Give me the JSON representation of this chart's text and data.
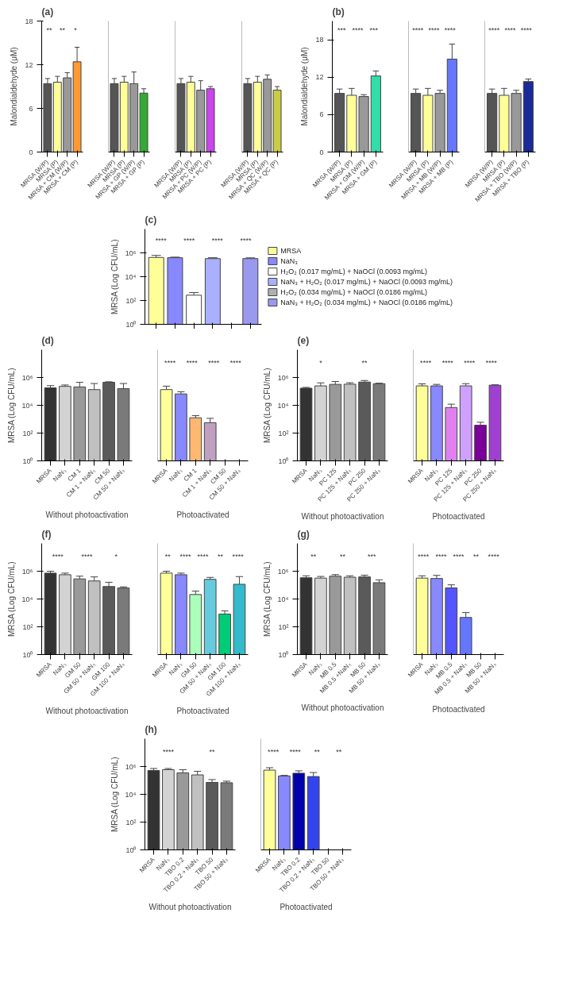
{
  "chart_data": [
    {
      "type": "bar",
      "title": "(a)",
      "ylabel": "Malondialdehyde (μM)",
      "categories": [
        "MRSA (W/P)",
        "MRSA (P)",
        "MRSA + CM (W/P)",
        "MRSA + CM (P)"
      ],
      "values": [
        9.4,
        9.6,
        10.2,
        12.4
      ],
      "errors": [
        [
          9.4,
          10.1
        ],
        [
          9.6,
          10.4
        ],
        [
          10.2,
          10.9
        ],
        [
          12.4,
          14.4
        ]
      ],
      "colors": [
        "#555555",
        "#ffff99",
        "#999999",
        "#ff9933"
      ],
      "ylim": [
        0,
        18
      ],
      "yticks": [
        0,
        6,
        12,
        18
      ],
      "annotations": [
        "**",
        "**",
        "*"
      ]
    },
    {
      "type": "bar",
      "tick_labels": "x",
      "categories": [
        "MRSA (W/P)",
        "MRSA (P)",
        "MRSA + GP (W/P)",
        "MRSA + GP (P)"
      ],
      "values": [
        9.4,
        9.6,
        9.4,
        8.1
      ],
      "errors": [
        [
          9.4,
          10.1
        ],
        [
          9.6,
          10.4
        ],
        [
          9.4,
          11.0
        ],
        [
          8.1,
          8.7
        ]
      ],
      "colors": [
        "#555555",
        "#ffff99",
        "#999999",
        "#33aa33"
      ],
      "ylim": [
        0,
        18
      ]
    },
    {
      "type": "bar",
      "tick_labels": "x",
      "categories": [
        "MRSA (W/P)",
        "MRSA (P)",
        "MRSA + PC (W/P)",
        "MRSA + PC (P)"
      ],
      "values": [
        9.4,
        9.6,
        8.5,
        8.7
      ],
      "errors": [
        [
          9.4,
          10.1
        ],
        [
          9.6,
          10.4
        ],
        [
          8.5,
          9.8
        ],
        [
          8.7,
          9.0
        ]
      ],
      "colors": [
        "#555555",
        "#ffff99",
        "#999999",
        "#cc44ee"
      ],
      "ylim": [
        0,
        18
      ]
    },
    {
      "type": "bar",
      "tick_labels": "x",
      "categories": [
        "MRSA (W/P)",
        "MRSA (P)",
        "MRSA + QC (W/P)",
        "MRSA + QC (P)"
      ],
      "values": [
        9.4,
        9.6,
        10.0,
        8.5
      ],
      "errors": [
        [
          9.4,
          10.1
        ],
        [
          9.6,
          10.4
        ],
        [
          10.0,
          10.6
        ],
        [
          8.5,
          9.0
        ]
      ],
      "colors": [
        "#555555",
        "#ffff99",
        "#999999",
        "#cccc44"
      ],
      "ylim": [
        0,
        18
      ]
    },
    {
      "type": "bar",
      "title": "(b)",
      "ylabel": "Malondialdehyde (μM)",
      "categories": [
        "MRSA (W/P)",
        "MRSA (P)",
        "MRSA + GM (W/P)",
        "MRSA + GM (P)"
      ],
      "values": [
        9.4,
        9.1,
        8.9,
        12.2
      ],
      "errors": [
        [
          9.4,
          10.1
        ],
        [
          9.1,
          10.2
        ],
        [
          8.9,
          9.2
        ],
        [
          12.2,
          13.0
        ]
      ],
      "colors": [
        "#555555",
        "#ffff99",
        "#999999",
        "#33ddaa"
      ],
      "ylim": [
        0,
        21
      ],
      "yticks": [
        0,
        6,
        12,
        18
      ],
      "annotations": [
        "***",
        "****",
        "***"
      ]
    },
    {
      "type": "bar",
      "tick_labels": "x",
      "categories": [
        "MRSA (W/P)",
        "MRSA (P)",
        "MRSA + MB (W/P)",
        "MRSA + MB (P)"
      ],
      "values": [
        9.4,
        9.1,
        9.4,
        14.9
      ],
      "errors": [
        [
          9.4,
          10.1
        ],
        [
          9.1,
          10.2
        ],
        [
          9.4,
          9.9
        ],
        [
          14.9,
          17.3
        ]
      ],
      "colors": [
        "#555555",
        "#ffff99",
        "#999999",
        "#6677ff"
      ],
      "ylim": [
        0,
        21
      ],
      "annotations": [
        "****",
        "****",
        "****"
      ]
    },
    {
      "type": "bar",
      "tick_labels": "x",
      "categories": [
        "MRSA (W/P)",
        "MRSA (P)",
        "MRSA + TBO (W/P)",
        "MRSA + TBO (P)"
      ],
      "values": [
        9.4,
        9.1,
        9.4,
        11.3
      ],
      "errors": [
        [
          9.4,
          10.1
        ],
        [
          9.1,
          10.2
        ],
        [
          9.4,
          9.9
        ],
        [
          11.3,
          11.7
        ]
      ],
      "colors": [
        "#555555",
        "#ffff99",
        "#999999",
        "#1a2a99"
      ],
      "ylim": [
        0,
        21
      ],
      "annotations": [
        "****",
        "****",
        "****"
      ]
    },
    {
      "type": "bar",
      "title": "(c)",
      "ylabel": "MRSA (Log CFU/mL)",
      "categories": [
        null,
        null,
        null,
        null,
        null,
        null
      ],
      "log": true,
      "ylim": [
        1,
        100000000
      ],
      "yticks": [
        {
          "value": 1,
          "label": "10⁰"
        },
        {
          "value": 100,
          "label": "10²"
        },
        {
          "value": 10000,
          "label": "10⁴"
        },
        {
          "value": 1000000,
          "label": "10⁶"
        }
      ],
      "legend": "right",
      "series": [
        {
          "name": "MRSA",
          "color": "#ffff99",
          "values": [
            410000,
            null,
            null,
            null,
            null,
            null
          ],
          "errors": [
            [
              410000,
              610000
            ],
            null,
            null,
            null,
            null,
            null
          ]
        },
        {
          "name": "NaN₃",
          "color": "#8888ff",
          "values": [
            null,
            390000,
            null,
            null,
            null,
            null
          ],
          "errors": [
            null,
            [
              390000,
              440000
            ],
            null,
            null,
            null,
            null
          ]
        },
        {
          "name": "H₂O₂ (0.017 mg/mL) + NaOCl (0.0093 mg/mL)",
          "color": "#ffffff",
          "values": [
            null,
            null,
            280,
            null,
            null,
            null
          ],
          "errors": [
            null,
            null,
            [
              280,
              460
            ],
            null,
            null,
            null
          ]
        },
        {
          "name": "NaN₃ + H₂O₂ (0.017 mg/mL) + NaOCl (0.0093 mg/mL)",
          "color": "#aab0ff",
          "values": [
            null,
            null,
            null,
            330000,
            null,
            null
          ],
          "errors": [
            null,
            null,
            null,
            [
              330000,
              390000
            ],
            null,
            null
          ]
        },
        {
          "name": "H₂O₂ (0.034 mg/mL) + NaOCl (0.0186 mg/mL)",
          "color": "#b0b0b0",
          "values": [
            null,
            null,
            null,
            null,
            null,
            null
          ]
        },
        {
          "name": "NaN₃ + H₂O₂ (0.034 mg/mL) + NaOCl (0.0186 mg/mL)",
          "color": "#9999ee",
          "values": [
            null,
            null,
            null,
            null,
            null,
            330000
          ],
          "errors": [
            null,
            null,
            null,
            null,
            null,
            [
              330000,
              380000
            ]
          ]
        }
      ],
      "annotations": [
        "****",
        "****",
        "****",
        "****"
      ]
    },
    {
      "type": "bar",
      "title": "(d)",
      "ylabel": "MRSA (Log CFU/mL)",
      "xlabel": "Without photoactivation",
      "categories": [
        "MRSA",
        "NaN₃",
        "CM 1",
        "CM 1 + NaN₃",
        "CM 50",
        "CM 50 + NaN₃"
      ],
      "values": [
        180000,
        230000,
        210000,
        135000,
        450000,
        160000
      ],
      "errors": [
        [
          180000,
          260000
        ],
        [
          230000,
          290000
        ],
        [
          210000,
          450000
        ],
        [
          135000,
          370000
        ],
        [
          450000,
          490000
        ],
        [
          160000,
          370000
        ]
      ],
      "colors": [
        "#333333",
        "#d3d3d3",
        "#999999",
        "#c0c0c0",
        "#5a5a5a",
        "#7a7a7a"
      ],
      "log": true,
      "ylim": [
        1,
        100000000
      ],
      "yticks": [
        {
          "value": 1,
          "label": "10⁰"
        },
        {
          "value": 100,
          "label": "10²"
        },
        {
          "value": 10000,
          "label": "10⁴"
        },
        {
          "value": 1000000,
          "label": "10⁶"
        }
      ]
    },
    {
      "type": "bar",
      "tick_labels": "x",
      "xlabel": "Photoactivated",
      "categories": [
        "MRSA",
        "NaN₃",
        "CM 1",
        "CM 1 + NaN₃",
        "CM 50",
        "CM 50 + NaN₃"
      ],
      "values": [
        135000,
        66000,
        1260,
        560,
        null,
        null
      ],
      "errors": [
        [
          135000,
          240000
        ],
        [
          66000,
          95000
        ],
        [
          1260,
          1800
        ],
        [
          560,
          1150
        ],
        null,
        null
      ],
      "colors": [
        "#ffff99",
        "#8888ff",
        "#ffb870",
        "#c0a0c0",
        null,
        null
      ],
      "log": true,
      "ylim": [
        1,
        100000000
      ],
      "annotations": [
        "****",
        "****",
        "****",
        "****"
      ]
    },
    {
      "type": "bar",
      "title": "(e)",
      "ylabel": "MRSA (Log CFU/mL)",
      "xlabel": "Without photoactivation",
      "categories": [
        "MRSA",
        "NaN₃",
        "PC 125",
        "PC 125 + NaN₃",
        "PC 250",
        "PC 250 + NaN₃"
      ],
      "values": [
        170000,
        250000,
        320000,
        330000,
        470000,
        360000
      ],
      "errors": [
        [
          170000,
          195000
        ],
        [
          250000,
          410000
        ],
        [
          320000,
          520000
        ],
        [
          330000,
          420000
        ],
        [
          470000,
          610000
        ],
        [
          360000,
          390000
        ]
      ],
      "colors": [
        "#333333",
        "#d3d3d3",
        "#999999",
        "#c0c0c0",
        "#5a5a5a",
        "#7a7a7a"
      ],
      "log": true,
      "ylim": [
        1,
        100000000
      ],
      "yticks": [
        {
          "value": 1,
          "label": "10⁰"
        },
        {
          "value": 100,
          "label": "10²"
        },
        {
          "value": 10000,
          "label": "10⁴"
        },
        {
          "value": 1000000,
          "label": "10⁶"
        }
      ],
      "annotations": [
        "*",
        "**"
      ]
    },
    {
      "type": "bar",
      "tick_labels": "x",
      "xlabel": "Photoactivated",
      "categories": [
        "MRSA",
        "NaN₃",
        "PC 125",
        "PC 125 + NaN₃",
        "PC 250",
        "PC 250 + NaN₃"
      ],
      "values": [
        250000,
        250000,
        6900,
        250000,
        370,
        280000
      ],
      "errors": [
        [
          250000,
          350000
        ],
        [
          250000,
          320000
        ],
        [
          6900,
          12000
        ],
        [
          250000,
          360000
        ],
        [
          370,
          600
        ],
        [
          280000,
          300000
        ]
      ],
      "colors": [
        "#ffff99",
        "#8888ff",
        "#e080f0",
        "#d0a0ff",
        "#7a0099",
        "#a040d0"
      ],
      "log": true,
      "ylim": [
        1,
        100000000
      ],
      "annotations": [
        "****",
        "****",
        "****",
        "****"
      ]
    },
    {
      "type": "bar",
      "title": "(f)",
      "ylabel": "MRSA (Log CFU/mL)",
      "xlabel": "Without photoactivation",
      "categories": [
        "MRSA",
        "NaN₃",
        "GM 50",
        "GM 50 + NaN₃",
        "GM 100",
        "GM 100 + NaN₃"
      ],
      "values": [
        730000,
        560000,
        280000,
        200000,
        79000,
        62000
      ],
      "errors": [
        [
          730000,
          1000000
        ],
        [
          560000,
          730000
        ],
        [
          280000,
          440000
        ],
        [
          200000,
          390000
        ],
        [
          79000,
          160000
        ],
        [
          62000,
          75000
        ]
      ],
      "colors": [
        "#333333",
        "#d3d3d3",
        "#999999",
        "#c0c0c0",
        "#5a5a5a",
        "#7a7a7a"
      ],
      "log": true,
      "ylim": [
        1,
        100000000
      ],
      "yticks": [
        {
          "value": 1,
          "label": "10⁰"
        },
        {
          "value": 100,
          "label": "10²"
        },
        {
          "value": 10000,
          "label": "10⁴"
        },
        {
          "value": 1000000,
          "label": "10⁶"
        }
      ],
      "annotations": [
        "****",
        "****",
        "*"
      ]
    },
    {
      "type": "bar",
      "tick_labels": "x",
      "xlabel": "Photoactivated",
      "categories": [
        "MRSA",
        "NaN₃",
        "GM 50",
        "GM 50 + NaN₃",
        "GM 100",
        "GM 100 + NaN₃"
      ],
      "values": [
        730000,
        560000,
        21000,
        260000,
        830,
        115000
      ],
      "errors": [
        [
          730000,
          1000000
        ],
        [
          560000,
          730000
        ],
        [
          21000,
          37000
        ],
        [
          260000,
          360000
        ],
        [
          830,
          1400
        ],
        [
          115000,
          410000
        ]
      ],
      "colors": [
        "#ffff99",
        "#8888ff",
        "#aaffbb",
        "#66ccdd",
        "#00cc77",
        "#33bbcc"
      ],
      "log": true,
      "ylim": [
        1,
        100000000
      ],
      "annotations": [
        "**",
        "****",
        "****",
        "**",
        "****"
      ]
    },
    {
      "type": "bar",
      "title": "(g)",
      "ylabel": "MRSA (Log CFU/mL)",
      "xlabel": "Without photoactivation",
      "categories": [
        "MRSA",
        "NaN₃",
        "MB 0.5",
        "MB 0.5 +NaN₃",
        "MB 50",
        "MB 50 + NaN₃"
      ],
      "values": [
        340000,
        320000,
        440000,
        370000,
        390000,
        150000
      ],
      "errors": [
        [
          340000,
          470000
        ],
        [
          320000,
          420000
        ],
        [
          440000,
          570000
        ],
        [
          370000,
          470000
        ],
        [
          390000,
          520000
        ],
        [
          150000,
          240000
        ]
      ],
      "colors": [
        "#333333",
        "#d3d3d3",
        "#999999",
        "#c0c0c0",
        "#5a5a5a",
        "#7a7a7a"
      ],
      "log": true,
      "ylim": [
        1,
        100000000
      ],
      "yticks": [
        {
          "value": 1,
          "label": "10⁰"
        },
        {
          "value": 100,
          "label": "10²"
        },
        {
          "value": 10000,
          "label": "10⁴"
        },
        {
          "value": 1000000,
          "label": "10⁶"
        }
      ],
      "annotations": [
        "**",
        "**",
        "***"
      ]
    },
    {
      "type": "bar",
      "tick_labels": "x",
      "xlabel": "Photoactivated",
      "categories": [
        "MRSA",
        "NaN₃",
        "MB 0.5",
        "MB 0.5 + NaN₃",
        "MB 50",
        "MB 50 + NaN₃"
      ],
      "values": [
        320000,
        300000,
        63000,
        470,
        null,
        null
      ],
      "errors": [
        [
          320000,
          470000
        ],
        [
          300000,
          500000
        ],
        [
          63000,
          105000
        ],
        [
          470,
          1050
        ],
        null,
        null
      ],
      "colors": [
        "#ffff99",
        "#8888ff",
        "#5555ff",
        "#6677ff",
        null,
        null
      ],
      "log": true,
      "ylim": [
        1,
        100000000
      ],
      "annotations": [
        "****",
        "****",
        "****",
        "**",
        "****"
      ]
    },
    {
      "type": "bar",
      "title": "(h)",
      "ylabel": "MRSA (Log CFU/mL)",
      "xlabel": "Without photoactivation",
      "categories": [
        "MRSA",
        "NaN₃",
        "TBO 0.2",
        "TBO 0.2 + NaN₃",
        "TBO 50",
        "TBO 50 + NaN₃"
      ],
      "values": [
        520000,
        590000,
        350000,
        250000,
        72000,
        68000
      ],
      "errors": [
        [
          520000,
          720000
        ],
        [
          590000,
          720000
        ],
        [
          350000,
          590000
        ],
        [
          250000,
          450000
        ],
        [
          72000,
          115000
        ],
        [
          68000,
          88000
        ]
      ],
      "colors": [
        "#333333",
        "#d3d3d3",
        "#999999",
        "#c0c0c0",
        "#5a5a5a",
        "#7a7a7a"
      ],
      "log": true,
      "ylim": [
        1,
        100000000
      ],
      "yticks": [
        {
          "value": 1,
          "label": "10⁰"
        },
        {
          "value": 100,
          "label": "10²"
        },
        {
          "value": 10000,
          "label": "10⁴"
        },
        {
          "value": 1000000,
          "label": "10⁶"
        }
      ],
      "annotations": [
        "****",
        "**"
      ]
    },
    {
      "type": "bar",
      "tick_labels": "x",
      "xlabel": "Photoactivated",
      "categories": [
        "MRSA",
        "NaN₃",
        "TBO 0.2",
        "TBO 0.2 + NaN₃",
        "TBO 50",
        "TBO 50 + NaN₃"
      ],
      "values": [
        550000,
        210000,
        330000,
        190000,
        null,
        null
      ],
      "errors": [
        [
          550000,
          820000
        ],
        [
          210000,
          230000
        ],
        [
          330000,
          490000
        ],
        [
          190000,
          370000
        ],
        null,
        null
      ],
      "colors": [
        "#ffff99",
        "#8888ff",
        "#0000aa",
        "#3344ee",
        null,
        null
      ],
      "log": true,
      "ylim": [
        1,
        100000000
      ],
      "annotations": [
        "****",
        "****",
        "**",
        "**"
      ]
    }
  ]
}
